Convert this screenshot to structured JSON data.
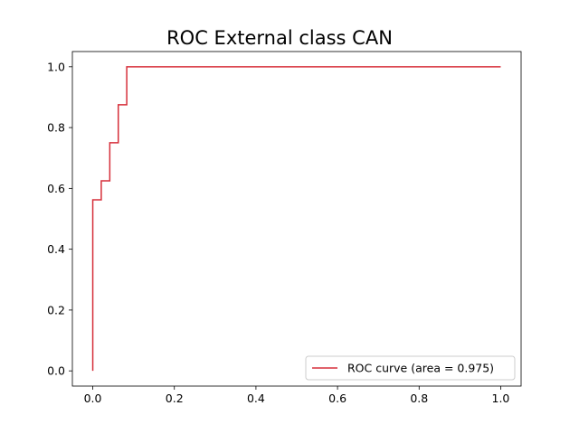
{
  "chart_data": {
    "type": "line",
    "title": "ROC External class CAN",
    "xlabel": "",
    "ylabel": "",
    "xlim": [
      -0.05,
      1.05
    ],
    "ylim": [
      -0.05,
      1.05
    ],
    "xticks": [
      0.0,
      0.2,
      0.4,
      0.6,
      0.8,
      1.0
    ],
    "yticks": [
      0.0,
      0.2,
      0.4,
      0.6,
      0.8,
      1.0
    ],
    "xtick_labels": [
      "0.0",
      "0.2",
      "0.4",
      "0.6",
      "0.8",
      "1.0"
    ],
    "ytick_labels": [
      "0.0",
      "0.2",
      "0.4",
      "0.6",
      "0.8",
      "1.0"
    ],
    "grid": false,
    "legend_position": "lower-right",
    "series": [
      {
        "name": "ROC curve (area = 0.975)",
        "color": "#d62f3a",
        "x": [
          0.0,
          0.0,
          0.0,
          0.0208,
          0.0208,
          0.0417,
          0.0417,
          0.0625,
          0.0625,
          0.0833,
          0.0833,
          1.0
        ],
        "y": [
          0.0,
          0.5625,
          0.5625,
          0.5625,
          0.625,
          0.625,
          0.75,
          0.75,
          0.875,
          0.875,
          1.0,
          1.0
        ]
      }
    ]
  }
}
